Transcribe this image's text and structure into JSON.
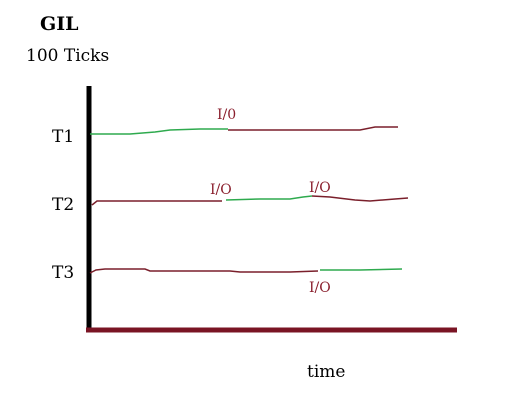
{
  "title": "GIL",
  "subtitle": "100 Ticks",
  "x_axis_label": "time",
  "colors": {
    "running": "#2eaa4e",
    "waiting": "#7a1f2b",
    "axis_vertical": "#000000",
    "axis_horizontal": "#7a1424",
    "io_text": "#8a1f2d"
  },
  "threads": [
    {
      "label": "T1",
      "io_labels": [
        "I/0"
      ]
    },
    {
      "label": "T2",
      "io_labels": [
        "I/O",
        "I/O"
      ]
    },
    {
      "label": "T3",
      "io_labels": [
        "I/O"
      ]
    }
  ]
}
